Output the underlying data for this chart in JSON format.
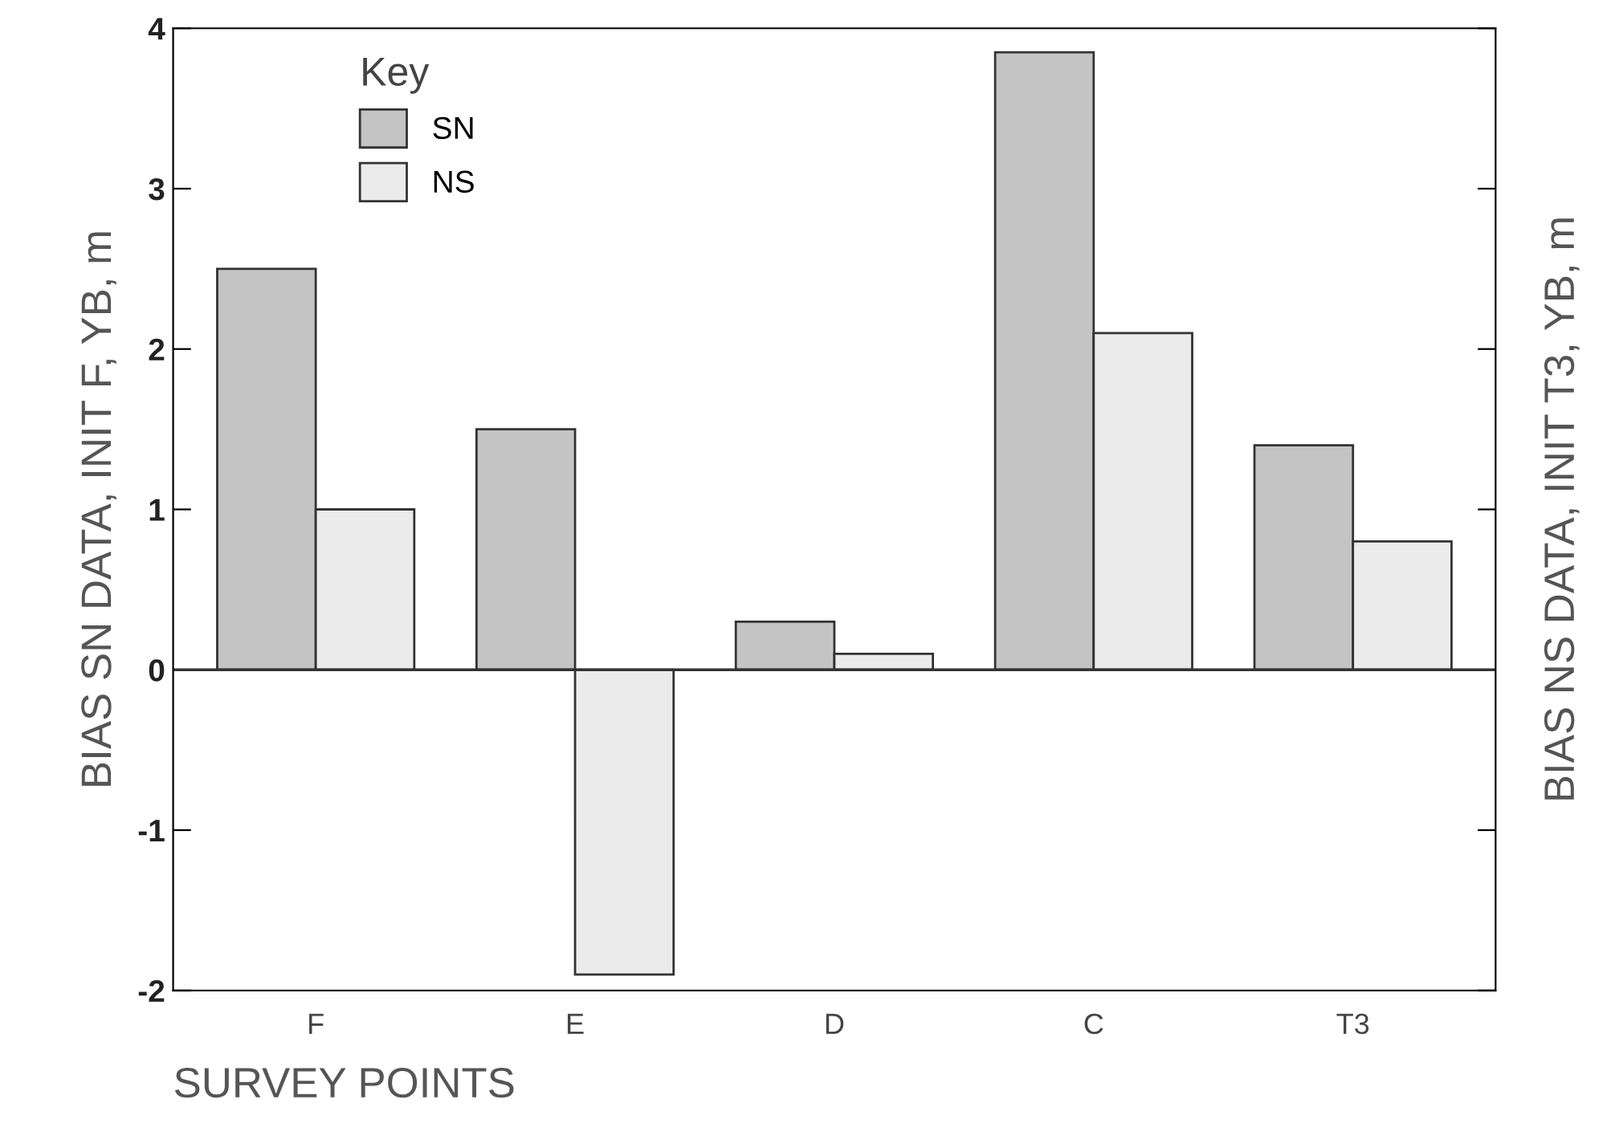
{
  "chart_data": {
    "type": "bar",
    "xlabel": "SURVEY POINTS",
    "ylabel": "BIAS SN DATA, INIT F, YB, m",
    "y2label": "BIAS NS DATA, INIT T3, YB, m",
    "legend_title": "Key",
    "categories": [
      "F",
      "E",
      "D",
      "C",
      "T3"
    ],
    "series": [
      {
        "name": "SN",
        "color": "#c4c4c4",
        "values": [
          2.5,
          1.5,
          0.3,
          3.85,
          1.4
        ]
      },
      {
        "name": "NS",
        "color": "#ebebeb",
        "values": [
          1.0,
          -1.9,
          0.1,
          2.1,
          0.8
        ]
      }
    ],
    "ylim": [
      -2,
      4
    ],
    "yticks": [
      -2,
      -1,
      0,
      1,
      2,
      3,
      4
    ],
    "ref_lines": [
      {
        "axis": "y",
        "value": 0,
        "label": null,
        "color": "#333333"
      }
    ],
    "grid": false,
    "legend": "top left"
  }
}
